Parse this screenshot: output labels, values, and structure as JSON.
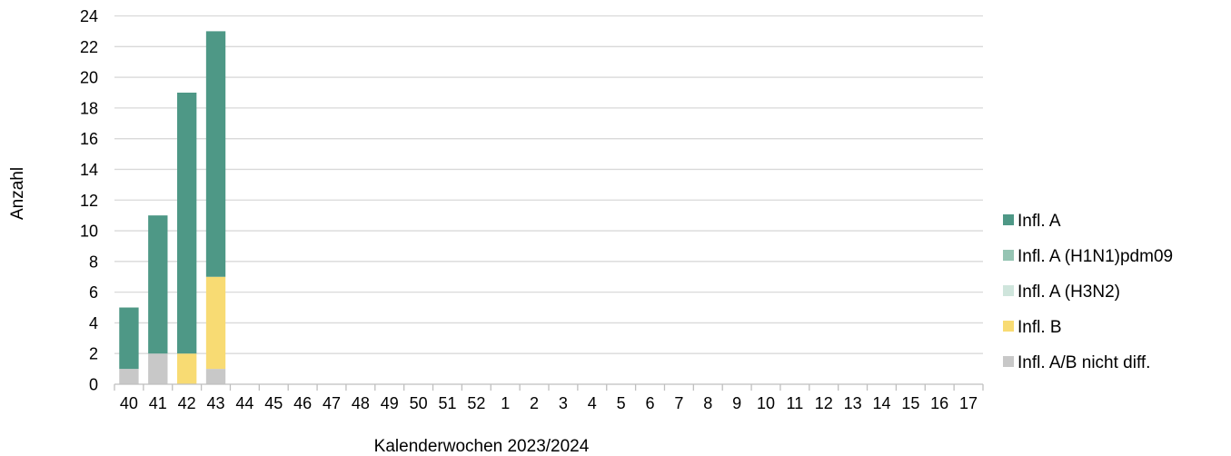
{
  "chart_data": {
    "type": "bar",
    "stacked": true,
    "xlabel": "Kalenderwochen 2023/2024",
    "ylabel": "Anzahl",
    "ylim": [
      0,
      24
    ],
    "yticks": [
      0,
      2,
      4,
      6,
      8,
      10,
      12,
      14,
      16,
      18,
      20,
      22,
      24
    ],
    "grid": "horizontal",
    "legend_position": "right",
    "categories": [
      "40",
      "41",
      "42",
      "43",
      "44",
      "45",
      "46",
      "47",
      "48",
      "49",
      "50",
      "51",
      "52",
      "1",
      "2",
      "3",
      "4",
      "5",
      "6",
      "7",
      "8",
      "9",
      "10",
      "11",
      "12",
      "13",
      "14",
      "15",
      "16",
      "17"
    ],
    "series": [
      {
        "name": "Infl. A/B nicht diff.",
        "color": "#c8c8c8",
        "values": [
          1,
          2,
          0,
          1,
          0,
          0,
          0,
          0,
          0,
          0,
          0,
          0,
          0,
          0,
          0,
          0,
          0,
          0,
          0,
          0,
          0,
          0,
          0,
          0,
          0,
          0,
          0,
          0,
          0,
          0
        ]
      },
      {
        "name": "Infl. B",
        "color": "#f8db73",
        "values": [
          0,
          0,
          2,
          6,
          0,
          0,
          0,
          0,
          0,
          0,
          0,
          0,
          0,
          0,
          0,
          0,
          0,
          0,
          0,
          0,
          0,
          0,
          0,
          0,
          0,
          0,
          0,
          0,
          0,
          0
        ]
      },
      {
        "name": "Infl. A (H3N2)",
        "color": "#cfe5dc",
        "values": [
          0,
          0,
          0,
          0,
          0,
          0,
          0,
          0,
          0,
          0,
          0,
          0,
          0,
          0,
          0,
          0,
          0,
          0,
          0,
          0,
          0,
          0,
          0,
          0,
          0,
          0,
          0,
          0,
          0,
          0
        ]
      },
      {
        "name": "Infl. A (H1N1)pdm09",
        "color": "#95c4b3",
        "values": [
          0,
          0,
          0,
          0,
          0,
          0,
          0,
          0,
          0,
          0,
          0,
          0,
          0,
          0,
          0,
          0,
          0,
          0,
          0,
          0,
          0,
          0,
          0,
          0,
          0,
          0,
          0,
          0,
          0,
          0
        ]
      },
      {
        "name": "Infl. A",
        "color": "#4e9886",
        "values": [
          4,
          9,
          17,
          16,
          0,
          0,
          0,
          0,
          0,
          0,
          0,
          0,
          0,
          0,
          0,
          0,
          0,
          0,
          0,
          0,
          0,
          0,
          0,
          0,
          0,
          0,
          0,
          0,
          0,
          0
        ]
      }
    ],
    "legend_order": [
      "Infl. A",
      "Infl. A (H1N1)pdm09",
      "Infl. A (H3N2)",
      "Infl. B",
      "Infl. A/B nicht diff."
    ]
  }
}
